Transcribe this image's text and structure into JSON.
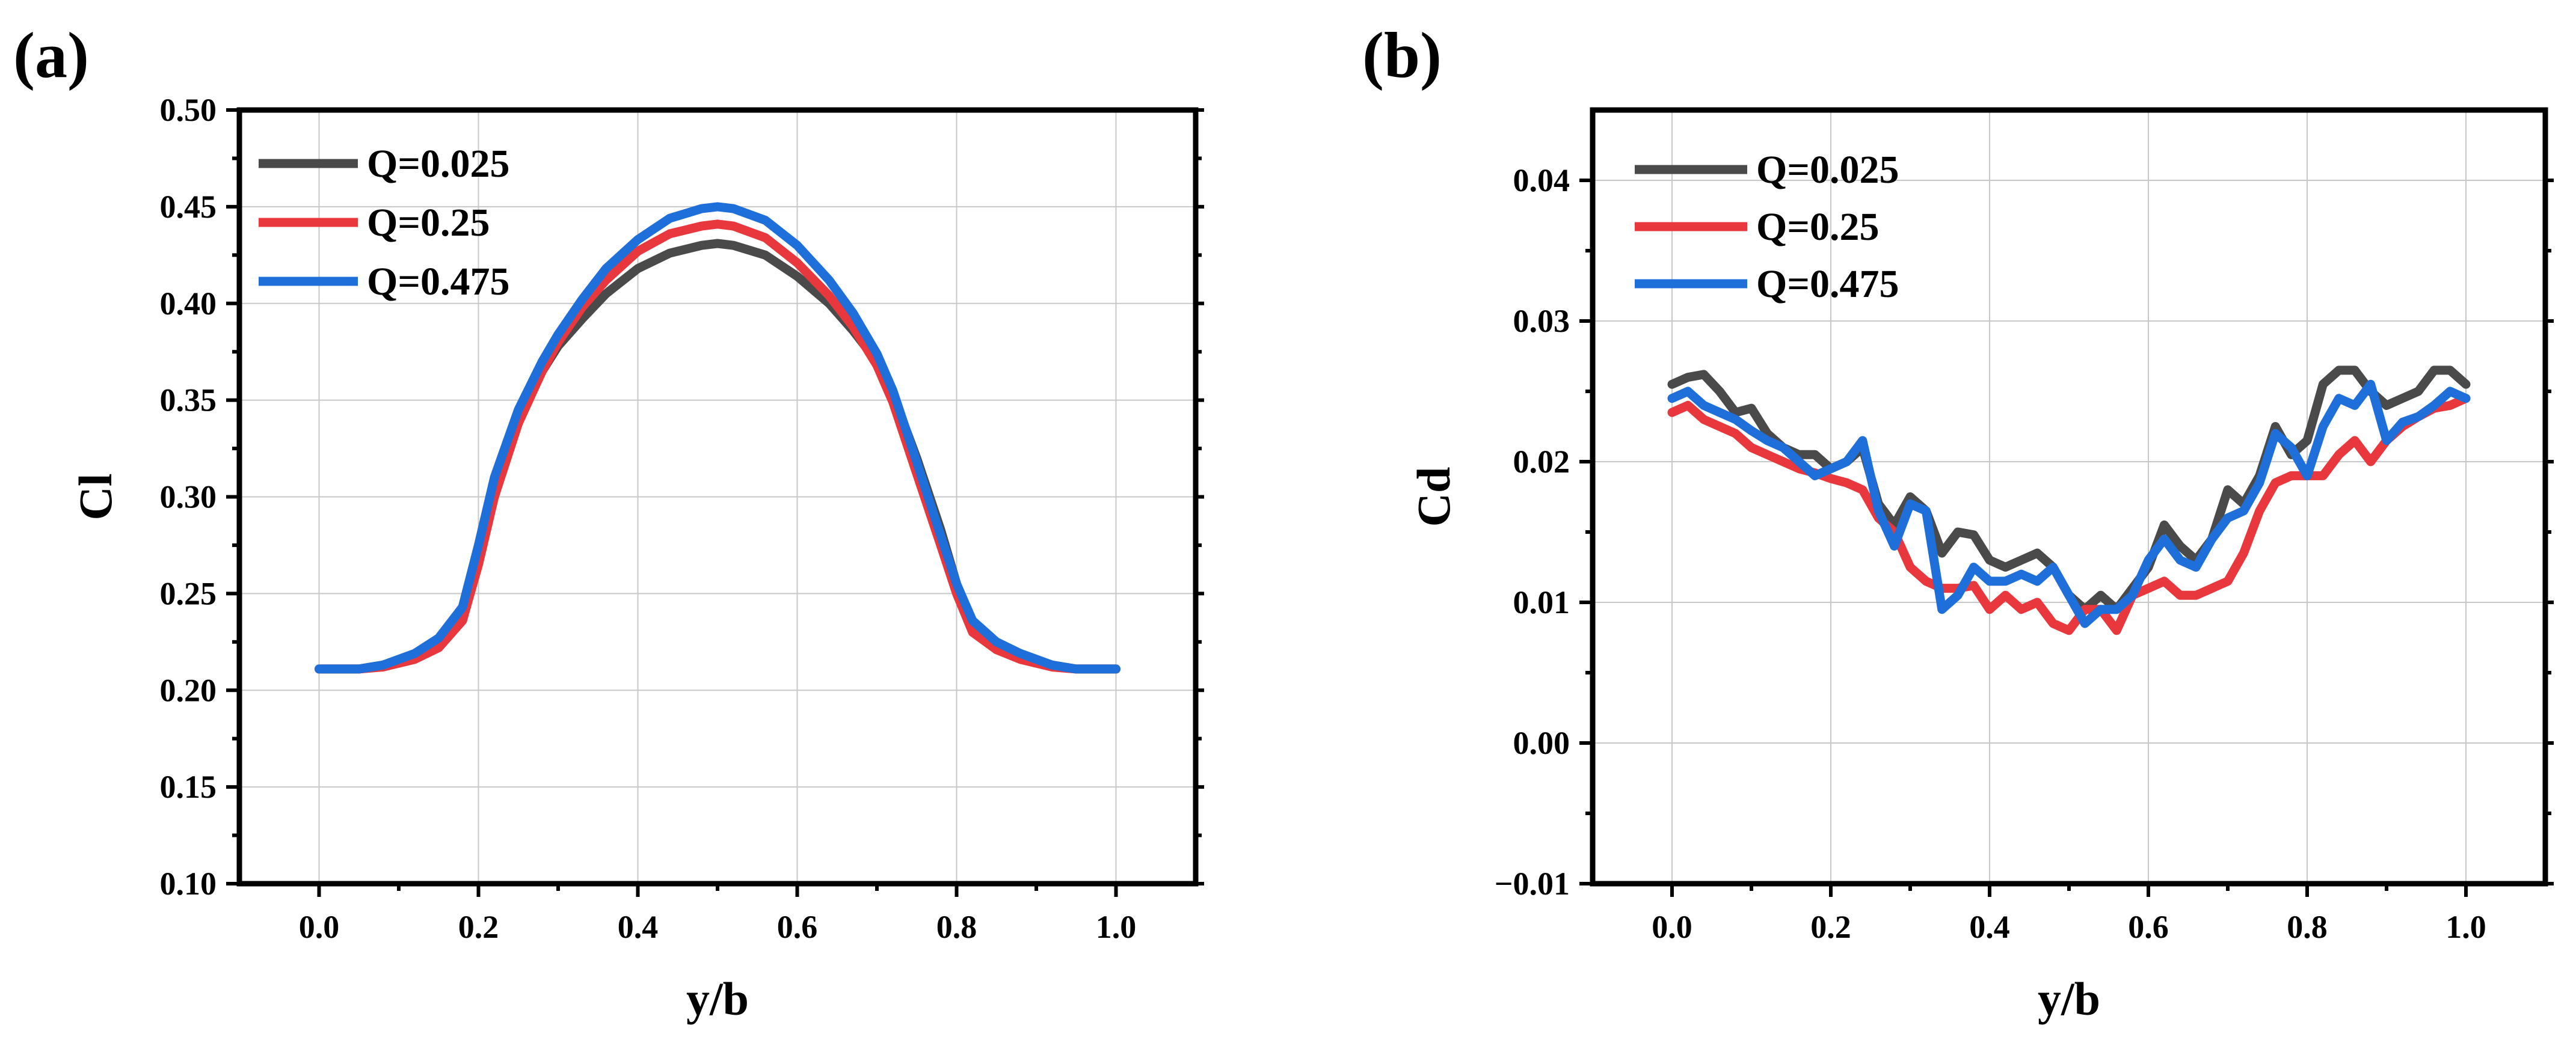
{
  "chart_data": [
    {
      "panel_label": "(a)",
      "type": "line",
      "title": "",
      "xlabel": "y/b",
      "ylabel": "Cl",
      "xlim": [
        -0.1,
        1.1
      ],
      "ylim": [
        0.1,
        0.5
      ],
      "xticks": [
        0.0,
        0.2,
        0.4,
        0.6,
        0.8,
        1.0
      ],
      "xtick_labels": [
        "0.0",
        "0.2",
        "0.4",
        "0.6",
        "0.8",
        "1.0"
      ],
      "yticks": [
        0.1,
        0.15,
        0.2,
        0.25,
        0.3,
        0.35,
        0.4,
        0.45,
        0.5
      ],
      "ytick_labels": [
        "0.10",
        "0.15",
        "0.20",
        "0.25",
        "0.30",
        "0.35",
        "0.40",
        "0.45",
        "0.50"
      ],
      "grid": true,
      "legend_position": "top-left",
      "series": [
        {
          "name": "Q=0.025",
          "color": "#4a4a4a",
          "x": [
            0.0,
            0.05,
            0.08,
            0.12,
            0.15,
            0.18,
            0.2,
            0.22,
            0.25,
            0.28,
            0.3,
            0.33,
            0.36,
            0.4,
            0.44,
            0.48,
            0.5,
            0.52,
            0.56,
            0.6,
            0.64,
            0.67,
            0.7,
            0.72,
            0.75,
            0.78,
            0.8,
            0.82,
            0.85,
            0.88,
            0.92,
            0.95,
            1.0
          ],
          "y": [
            0.211,
            0.211,
            0.213,
            0.218,
            0.225,
            0.238,
            0.27,
            0.305,
            0.34,
            0.365,
            0.378,
            0.392,
            0.405,
            0.418,
            0.426,
            0.43,
            0.431,
            0.43,
            0.425,
            0.414,
            0.4,
            0.386,
            0.37,
            0.353,
            0.32,
            0.283,
            0.255,
            0.235,
            0.224,
            0.218,
            0.213,
            0.211,
            0.211
          ]
        },
        {
          "name": "Q=0.25",
          "color": "#e8383d",
          "x": [
            0.0,
            0.05,
            0.08,
            0.12,
            0.15,
            0.18,
            0.2,
            0.22,
            0.25,
            0.28,
            0.3,
            0.33,
            0.36,
            0.4,
            0.44,
            0.48,
            0.5,
            0.52,
            0.56,
            0.6,
            0.64,
            0.67,
            0.7,
            0.72,
            0.75,
            0.78,
            0.8,
            0.82,
            0.85,
            0.88,
            0.92,
            0.95,
            1.0
          ],
          "y": [
            0.211,
            0.211,
            0.212,
            0.216,
            0.222,
            0.236,
            0.265,
            0.3,
            0.338,
            0.365,
            0.38,
            0.398,
            0.412,
            0.427,
            0.436,
            0.44,
            0.441,
            0.44,
            0.434,
            0.421,
            0.404,
            0.388,
            0.368,
            0.349,
            0.312,
            0.275,
            0.25,
            0.23,
            0.221,
            0.216,
            0.212,
            0.211,
            0.211
          ]
        },
        {
          "name": "Q=0.475",
          "color": "#1e6fd9",
          "x": [
            0.0,
            0.05,
            0.08,
            0.12,
            0.15,
            0.18,
            0.2,
            0.22,
            0.25,
            0.28,
            0.3,
            0.33,
            0.36,
            0.4,
            0.44,
            0.48,
            0.5,
            0.52,
            0.56,
            0.6,
            0.64,
            0.67,
            0.7,
            0.72,
            0.75,
            0.78,
            0.8,
            0.82,
            0.85,
            0.88,
            0.92,
            0.95,
            1.0
          ],
          "y": [
            0.211,
            0.211,
            0.213,
            0.219,
            0.227,
            0.243,
            0.275,
            0.31,
            0.345,
            0.37,
            0.384,
            0.402,
            0.418,
            0.433,
            0.444,
            0.449,
            0.45,
            0.449,
            0.443,
            0.43,
            0.412,
            0.395,
            0.374,
            0.355,
            0.318,
            0.28,
            0.255,
            0.236,
            0.225,
            0.219,
            0.213,
            0.211,
            0.211
          ]
        }
      ]
    },
    {
      "panel_label": "(b)",
      "type": "line",
      "title": "",
      "xlabel": "y/b",
      "ylabel": "Cd",
      "xlim": [
        -0.1,
        1.1
      ],
      "ylim": [
        -0.01,
        0.045
      ],
      "xticks": [
        0.0,
        0.2,
        0.4,
        0.6,
        0.8,
        1.0
      ],
      "xtick_labels": [
        "0.0",
        "0.2",
        "0.4",
        "0.6",
        "0.8",
        "1.0"
      ],
      "yticks": [
        -0.01,
        0.0,
        0.01,
        0.02,
        0.03,
        0.04
      ],
      "ytick_labels": [
        "−0.01",
        "0.00",
        "0.01",
        "0.02",
        "0.03",
        "0.04"
      ],
      "grid": true,
      "legend_position": "top-left",
      "series": [
        {
          "name": "Q=0.025",
          "color": "#4a4a4a",
          "x": [
            0.0,
            0.02,
            0.04,
            0.06,
            0.08,
            0.1,
            0.12,
            0.14,
            0.16,
            0.18,
            0.2,
            0.22,
            0.24,
            0.26,
            0.28,
            0.3,
            0.32,
            0.34,
            0.36,
            0.38,
            0.4,
            0.42,
            0.44,
            0.46,
            0.48,
            0.5,
            0.52,
            0.54,
            0.56,
            0.58,
            0.6,
            0.62,
            0.64,
            0.66,
            0.68,
            0.7,
            0.72,
            0.74,
            0.76,
            0.78,
            0.8,
            0.82,
            0.84,
            0.86,
            0.88,
            0.9,
            0.92,
            0.94,
            0.96,
            0.98,
            1.0
          ],
          "y": [
            0.0255,
            0.026,
            0.0262,
            0.025,
            0.0235,
            0.0238,
            0.022,
            0.021,
            0.0205,
            0.0205,
            0.0195,
            0.02,
            0.021,
            0.017,
            0.0155,
            0.0175,
            0.0165,
            0.0135,
            0.015,
            0.0148,
            0.013,
            0.0125,
            0.013,
            0.0135,
            0.0125,
            0.0105,
            0.0095,
            0.0105,
            0.0095,
            0.011,
            0.0125,
            0.0155,
            0.014,
            0.013,
            0.0145,
            0.018,
            0.017,
            0.019,
            0.0225,
            0.0205,
            0.0215,
            0.0255,
            0.0265,
            0.0265,
            0.025,
            0.024,
            0.0245,
            0.025,
            0.0265,
            0.0265,
            0.0255
          ]
        },
        {
          "name": "Q=0.25",
          "color": "#e8383d",
          "x": [
            0.0,
            0.02,
            0.04,
            0.06,
            0.08,
            0.1,
            0.12,
            0.14,
            0.16,
            0.18,
            0.2,
            0.22,
            0.24,
            0.26,
            0.28,
            0.3,
            0.32,
            0.34,
            0.36,
            0.38,
            0.4,
            0.42,
            0.44,
            0.46,
            0.48,
            0.5,
            0.52,
            0.54,
            0.56,
            0.58,
            0.6,
            0.62,
            0.64,
            0.66,
            0.68,
            0.7,
            0.72,
            0.74,
            0.76,
            0.78,
            0.8,
            0.82,
            0.84,
            0.86,
            0.88,
            0.9,
            0.92,
            0.94,
            0.96,
            0.98,
            1.0
          ],
          "y": [
            0.0235,
            0.024,
            0.023,
            0.0225,
            0.022,
            0.021,
            0.0205,
            0.02,
            0.0195,
            0.0192,
            0.0188,
            0.0185,
            0.018,
            0.016,
            0.015,
            0.0125,
            0.0115,
            0.011,
            0.011,
            0.0112,
            0.0095,
            0.0105,
            0.0095,
            0.01,
            0.0085,
            0.008,
            0.0095,
            0.0095,
            0.008,
            0.0105,
            0.011,
            0.0115,
            0.0105,
            0.0105,
            0.011,
            0.0115,
            0.0135,
            0.0165,
            0.0185,
            0.019,
            0.019,
            0.019,
            0.0205,
            0.0215,
            0.02,
            0.0215,
            0.0225,
            0.0232,
            0.0238,
            0.024,
            0.0245
          ]
        },
        {
          "name": "Q=0.475",
          "color": "#1e6fd9",
          "x": [
            0.0,
            0.02,
            0.04,
            0.06,
            0.08,
            0.1,
            0.12,
            0.14,
            0.16,
            0.18,
            0.2,
            0.22,
            0.24,
            0.26,
            0.28,
            0.3,
            0.32,
            0.34,
            0.36,
            0.38,
            0.4,
            0.42,
            0.44,
            0.46,
            0.48,
            0.5,
            0.52,
            0.54,
            0.56,
            0.58,
            0.6,
            0.62,
            0.64,
            0.66,
            0.68,
            0.7,
            0.72,
            0.74,
            0.76,
            0.78,
            0.8,
            0.82,
            0.84,
            0.86,
            0.88,
            0.9,
            0.92,
            0.94,
            0.96,
            0.98,
            1.0
          ],
          "y": [
            0.0245,
            0.025,
            0.024,
            0.0235,
            0.023,
            0.0222,
            0.0215,
            0.021,
            0.02,
            0.019,
            0.0195,
            0.02,
            0.0215,
            0.0165,
            0.014,
            0.017,
            0.0165,
            0.0095,
            0.0105,
            0.0125,
            0.0115,
            0.0115,
            0.012,
            0.0115,
            0.0125,
            0.0105,
            0.0085,
            0.0095,
            0.0095,
            0.0105,
            0.013,
            0.0145,
            0.013,
            0.0125,
            0.0145,
            0.016,
            0.0165,
            0.0185,
            0.022,
            0.021,
            0.019,
            0.0225,
            0.0245,
            0.024,
            0.0255,
            0.0215,
            0.0228,
            0.0232,
            0.024,
            0.025,
            0.0245
          ]
        }
      ]
    }
  ]
}
